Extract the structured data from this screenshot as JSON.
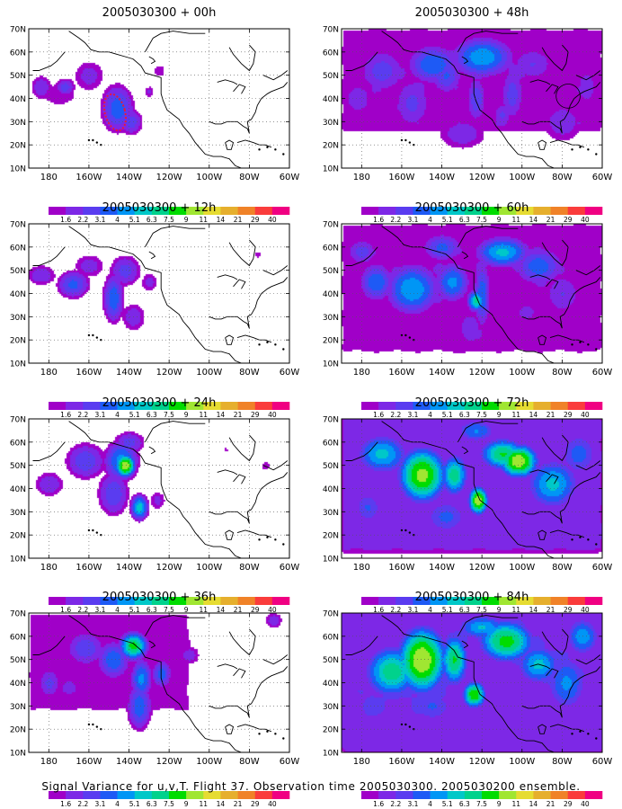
{
  "chart_data": [
    {
      "type": "heatmap",
      "title": "2005030300 + 00h",
      "x_ticks": [
        "180",
        "160W",
        "140W",
        "120W",
        "100W",
        "80W",
        "60W"
      ],
      "y_ticks": [
        "10N",
        "20N",
        "30N",
        "40N",
        "50N",
        "60N",
        "70N"
      ],
      "xlim": [
        170,
        300
      ],
      "ylim": [
        10,
        70
      ],
      "grid": true,
      "blobs": [
        [
          176,
          45,
          6,
          6,
          2.6
        ],
        [
          188,
          45,
          5,
          4,
          3.2
        ],
        [
          200,
          50,
          9,
          8,
          2.4
        ],
        [
          185,
          42,
          14,
          8,
          1.9
        ],
        [
          214,
          36,
          8,
          10,
          4.2
        ],
        [
          221,
          30,
          6,
          6,
          3.3
        ],
        [
          213,
          30,
          7,
          6,
          2.3
        ],
        [
          230,
          43,
          3,
          3,
          2.3
        ],
        [
          235,
          52,
          4,
          4,
          2.0
        ]
      ],
      "dashed_contour": {
        "cx": 213,
        "cy": 34,
        "rx": 5,
        "ry": 8,
        "color": "#e8183a"
      }
    },
    {
      "type": "heatmap",
      "title": "2005030300 + 48h",
      "x_ticks": [
        "180",
        "160W",
        "140W",
        "120W",
        "100W",
        "80W",
        "60W"
      ],
      "y_ticks": [
        "10N",
        "20N",
        "30N",
        "40N",
        "50N",
        "60N",
        "70N"
      ],
      "xlim": [
        170,
        300
      ],
      "ylim": [
        10,
        70
      ],
      "grid": true,
      "blobs": [
        [
          190,
          52,
          12,
          10,
          3.3
        ],
        [
          215,
          55,
          12,
          8,
          4.5
        ],
        [
          240,
          58,
          14,
          8,
          5.6
        ],
        [
          237,
          40,
          5,
          10,
          3.6
        ],
        [
          255,
          42,
          6,
          12,
          3.3
        ],
        [
          230,
          25,
          14,
          8,
          2.6
        ],
        [
          265,
          55,
          12,
          8,
          2.9
        ],
        [
          280,
          30,
          12,
          10,
          2.6
        ],
        [
          178,
          40,
          8,
          8,
          2.8
        ],
        [
          205,
          38,
          10,
          12,
          3.1
        ],
        [
          292,
          45,
          8,
          12,
          2.4
        ],
        [
          250,
          33,
          5,
          6,
          3.0
        ],
        [
          222,
          50,
          8,
          8,
          3.8
        ]
      ],
      "base_region": {
        "x": [
          172,
          298
        ],
        "y": [
          28,
          68
        ],
        "level": 1.9
      },
      "circle": {
        "cx": 283,
        "cy": 41,
        "r": 6
      }
    },
    {
      "type": "heatmap",
      "title": "2005030300 + 12h",
      "x_ticks": [
        "180",
        "160W",
        "140W",
        "120W",
        "100W",
        "80W",
        "60W"
      ],
      "y_ticks": [
        "10N",
        "20N",
        "30N",
        "40N",
        "50N",
        "60N",
        "70N"
      ],
      "xlim": [
        170,
        300
      ],
      "ylim": [
        10,
        70
      ],
      "grid": true,
      "blobs": [
        [
          176,
          48,
          8,
          5,
          2.8
        ],
        [
          192,
          44,
          8,
          6,
          4.0
        ],
        [
          212,
          38,
          5,
          10,
          4.5
        ],
        [
          218,
          50,
          8,
          7,
          3.3
        ],
        [
          200,
          52,
          9,
          6,
          2.5
        ],
        [
          222,
          30,
          7,
          7,
          2.6
        ],
        [
          230,
          45,
          5,
          5,
          2.4
        ],
        [
          284,
          57,
          2,
          2,
          2.0
        ]
      ],
      "base_region": null
    },
    {
      "type": "heatmap",
      "title": "2005030300 + 60h",
      "x_ticks": [
        "180",
        "160W",
        "140W",
        "120W",
        "100W",
        "80W",
        "60W"
      ],
      "y_ticks": [
        "10N",
        "20N",
        "30N",
        "40N",
        "50N",
        "60N",
        "70N"
      ],
      "xlim": [
        170,
        300
      ],
      "ylim": [
        10,
        70
      ],
      "grid": true,
      "blobs": [
        [
          187,
          45,
          8,
          8,
          4.5
        ],
        [
          205,
          42,
          12,
          10,
          5.8
        ],
        [
          225,
          45,
          8,
          8,
          5.1
        ],
        [
          240,
          40,
          4,
          14,
          4.3
        ],
        [
          237,
          37,
          4,
          4,
          7.5
        ],
        [
          250,
          58,
          12,
          6,
          6.2
        ],
        [
          268,
          52,
          12,
          8,
          4.3
        ],
        [
          280,
          40,
          10,
          10,
          2.9
        ],
        [
          220,
          60,
          10,
          6,
          4.0
        ],
        [
          180,
          58,
          8,
          6,
          3.3
        ],
        [
          234,
          25,
          8,
          10,
          2.6
        ],
        [
          262,
          32,
          8,
          6,
          2.4
        ]
      ],
      "base_region": {
        "x": [
          172,
          298
        ],
        "y": [
          17,
          68
        ],
        "level": 1.9
      }
    },
    {
      "type": "heatmap",
      "title": "2005030300 + 24h",
      "x_ticks": [
        "180",
        "160W",
        "140W",
        "120W",
        "100W",
        "80W",
        "60W"
      ],
      "y_ticks": [
        "10N",
        "20N",
        "30N",
        "40N",
        "50N",
        "60N",
        "70N"
      ],
      "xlim": [
        170,
        300
      ],
      "ylim": [
        10,
        70
      ],
      "grid": true,
      "blobs": [
        [
          180,
          42,
          8,
          6,
          2.8
        ],
        [
          198,
          52,
          10,
          8,
          3.6
        ],
        [
          218,
          50,
          4,
          4,
          12
        ],
        [
          216,
          52,
          8,
          8,
          5.2
        ],
        [
          225,
          32,
          4,
          5,
          6.5
        ],
        [
          212,
          38,
          8,
          10,
          3.6
        ],
        [
          220,
          60,
          8,
          5,
          3.3
        ],
        [
          234,
          35,
          5,
          5,
          2.3
        ],
        [
          288,
          50,
          3,
          3,
          2.0
        ],
        [
          268,
          57,
          2,
          2,
          1.8
        ]
      ],
      "base_region": null
    },
    {
      "type": "heatmap",
      "title": "2005030300 + 72h",
      "x_ticks": [
        "180",
        "160W",
        "140W",
        "120W",
        "100W",
        "80W",
        "60W"
      ],
      "y_ticks": [
        "10N",
        "20N",
        "30N",
        "40N",
        "50N",
        "60N",
        "70N"
      ],
      "xlim": [
        170,
        300
      ],
      "ylim": [
        10,
        70
      ],
      "grid": true,
      "blobs": [
        [
          190,
          55,
          12,
          8,
          6.2
        ],
        [
          210,
          46,
          10,
          10,
          11
        ],
        [
          226,
          46,
          6,
          8,
          7.8
        ],
        [
          238,
          35,
          4,
          5,
          12
        ],
        [
          250,
          55,
          10,
          6,
          8.2
        ],
        [
          258,
          52,
          8,
          6,
          12
        ],
        [
          275,
          42,
          12,
          10,
          6.2
        ],
        [
          222,
          28,
          12,
          8,
          4.0
        ],
        [
          183,
          32,
          8,
          8,
          3.8
        ],
        [
          288,
          55,
          10,
          10,
          4.2
        ],
        [
          237,
          65,
          10,
          5,
          4.8
        ]
      ],
      "base_region": {
        "x": [
          172,
          298
        ],
        "y": [
          15,
          70
        ],
        "level": 2.4
      }
    },
    {
      "type": "heatmap",
      "title": "2005030300 + 36h",
      "x_ticks": [
        "180",
        "160W",
        "140W",
        "120W",
        "100W",
        "80W",
        "60W"
      ],
      "y_ticks": [
        "10N",
        "20N",
        "30N",
        "40N",
        "50N",
        "60N",
        "70N"
      ],
      "xlim": [
        170,
        300
      ],
      "ylim": [
        10,
        70
      ],
      "grid": true,
      "blobs": [
        [
          180,
          40,
          6,
          7,
          3.1
        ],
        [
          198,
          55,
          10,
          8,
          3.5
        ],
        [
          222,
          56,
          6,
          5,
          9
        ],
        [
          212,
          50,
          8,
          8,
          4.5
        ],
        [
          226,
          42,
          5,
          8,
          5.0
        ],
        [
          225,
          30,
          6,
          10,
          4.4
        ],
        [
          236,
          44,
          5,
          6,
          4.2
        ],
        [
          190,
          38,
          8,
          6,
          2.4
        ],
        [
          250,
          52,
          6,
          5,
          2.5
        ],
        [
          292,
          67,
          5,
          4,
          2.6
        ]
      ],
      "base_region": {
        "x": [
          172,
          248
        ],
        "y": [
          30,
          68
        ],
        "level": 1.8
      }
    },
    {
      "type": "heatmap",
      "title": "2005030300 + 84h",
      "x_ticks": [
        "180",
        "160W",
        "140W",
        "120W",
        "100W",
        "80W",
        "60W"
      ],
      "y_ticks": [
        "10N",
        "20N",
        "30N",
        "40N",
        "50N",
        "60N",
        "70N"
      ],
      "xlim": [
        170,
        300
      ],
      "ylim": [
        10,
        70
      ],
      "grid": true,
      "blobs": [
        [
          210,
          50,
          10,
          12,
          12
        ],
        [
          195,
          45,
          12,
          10,
          7.8
        ],
        [
          226,
          50,
          6,
          10,
          8.5
        ],
        [
          236,
          35,
          5,
          5,
          10
        ],
        [
          252,
          58,
          12,
          8,
          9
        ],
        [
          268,
          48,
          10,
          8,
          6.2
        ],
        [
          282,
          40,
          10,
          12,
          5.0
        ],
        [
          215,
          30,
          12,
          8,
          3.8
        ],
        [
          185,
          30,
          10,
          10,
          3.4
        ],
        [
          290,
          60,
          8,
          8,
          5.5
        ],
        [
          240,
          64,
          12,
          5,
          6.0
        ]
      ],
      "base_region": {
        "x": [
          172,
          298
        ],
        "y": [
          13,
          70
        ],
        "level": 2.8
      }
    }
  ],
  "colorbar": {
    "labels": [
      "1.6",
      "2.2",
      "3.1",
      "4",
      "5.1",
      "6.3",
      "7.5",
      "9",
      "11",
      "14",
      "21",
      "29",
      "40"
    ],
    "thresholds": [
      1.6,
      2.2,
      3.1,
      4,
      5.1,
      6.3,
      7.5,
      9,
      11,
      14,
      21,
      29,
      40
    ],
    "colors": [
      "#a000c8",
      "#7d28e6",
      "#5a3cf0",
      "#1e5af5",
      "#0096f5",
      "#00c8c8",
      "#00d28c",
      "#00dc00",
      "#a0e632",
      "#e6dc32",
      "#e6af2d",
      "#f08228",
      "#fa3c3c",
      "#f00082"
    ]
  },
  "footer": "Signal Variance for u,v,T. Flight 37. Observation time 2005030300. 2005030200 ensemble."
}
